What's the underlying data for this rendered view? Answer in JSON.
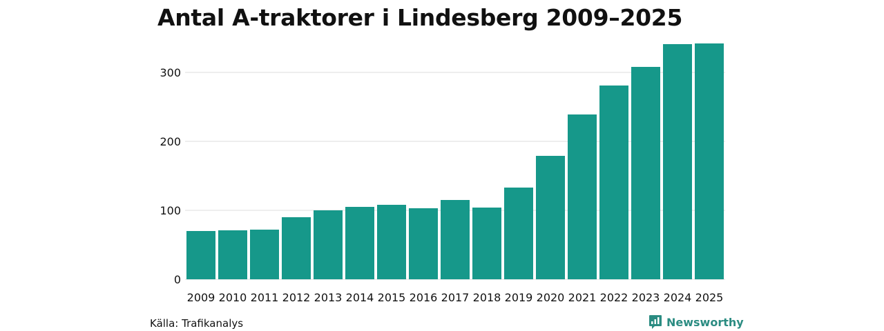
{
  "chart_data": {
    "type": "bar",
    "title": "Antal A-traktorer i Lindesberg 2009–2025",
    "categories": [
      "2009",
      "2010",
      "2011",
      "2012",
      "2013",
      "2014",
      "2015",
      "2016",
      "2017",
      "2018",
      "2019",
      "2020",
      "2021",
      "2022",
      "2023",
      "2024",
      "2025"
    ],
    "values": [
      70,
      71,
      72,
      90,
      100,
      105,
      108,
      103,
      115,
      104,
      133,
      179,
      239,
      281,
      308,
      341,
      342
    ],
    "xlabel": "",
    "ylabel": "",
    "ylim": [
      0,
      350
    ],
    "yticks": [
      0,
      100,
      200,
      300
    ],
    "grid": true,
    "bar_color": "#16988a",
    "grid_color": "#dcdcdc"
  },
  "footer": {
    "source": "Källa: Trafikanalys",
    "brand": "Newsworthy",
    "brand_color": "#2b8c82"
  }
}
